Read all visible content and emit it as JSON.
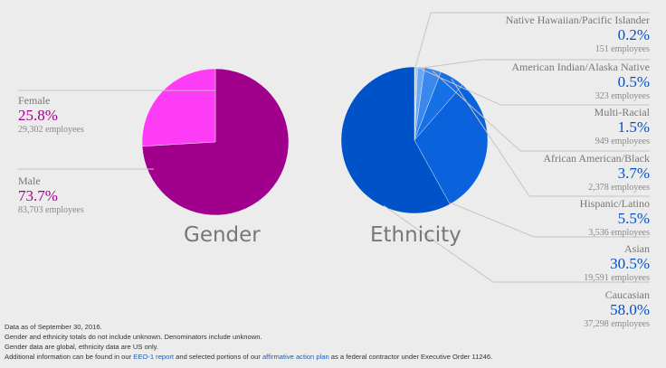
{
  "colors": {
    "female": "#ff3cf5",
    "male": "#a0008c",
    "gender_pct": "#a0008c",
    "ethnicity_pct": "#0050c8",
    "eth_slices": [
      "#c7dcf9",
      "#9cc4f5",
      "#6aa8f4",
      "#3a88ee",
      "#1670e6",
      "#0a62dc",
      "#0052c9"
    ]
  },
  "chart_data": [
    {
      "type": "pie",
      "title": "Gender",
      "slices": [
        {
          "label": "Female",
          "pct": 25.8,
          "pct_text": "25.8%",
          "employees": "29,302 employees"
        },
        {
          "label": "Male",
          "pct": 73.7,
          "pct_text": "73.7%",
          "employees": "83,703 employees"
        }
      ]
    },
    {
      "type": "pie",
      "title": "Ethnicity",
      "slices": [
        {
          "label": "Native Hawaiian/Pacific Islander",
          "pct": 0.2,
          "pct_text": "0.2%",
          "employees": "151 employees"
        },
        {
          "label": "American Indian/Alaska Native",
          "pct": 0.5,
          "pct_text": "0.5%",
          "employees": "323 employees"
        },
        {
          "label": "Multi-Racial",
          "pct": 1.5,
          "pct_text": "1.5%",
          "employees": "949 employees"
        },
        {
          "label": "African American/Black",
          "pct": 3.7,
          "pct_text": "3.7%",
          "employees": "2,378 employees"
        },
        {
          "label": "Hispanic/Latino",
          "pct": 5.5,
          "pct_text": "5.5%",
          "employees": "3,536 employees"
        },
        {
          "label": "Asian",
          "pct": 30.5,
          "pct_text": "30.5%",
          "employees": "19,591 employees"
        },
        {
          "label": "Caucasian",
          "pct": 58.0,
          "pct_text": "58.0%",
          "employees": "37,298 employees"
        }
      ]
    }
  ],
  "notes": {
    "line1": "Data as of September 30, 2016.",
    "line2": "Gender and ethnicity totals do not include unknown. Denominators include unknown.",
    "line3": "Gender data are global, ethnicity data are US only.",
    "line4_pre": "Additional information can be found in our ",
    "line4_link1": "EEO-1 report",
    "line4_mid": " and selected portions of our ",
    "line4_link2": "affirmative action plan",
    "line4_post": " as a federal contractor under Executive Order 11246."
  }
}
